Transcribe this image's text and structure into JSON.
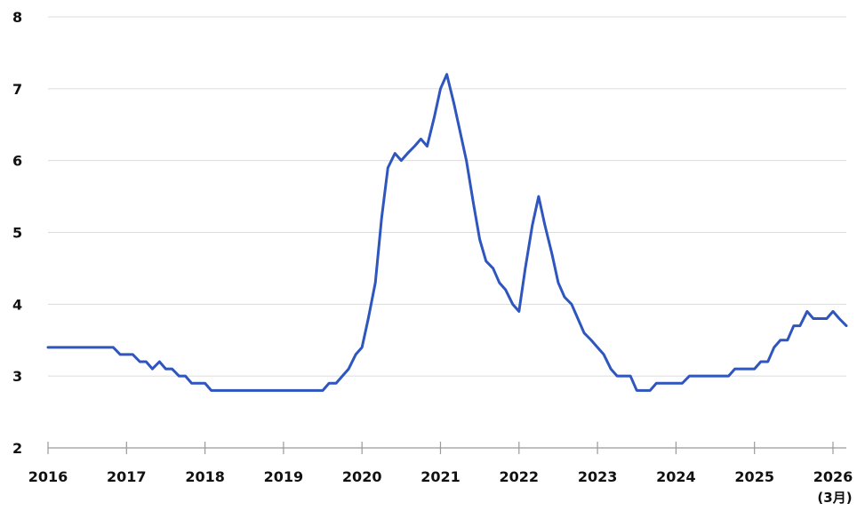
{
  "chart_data": {
    "type": "line",
    "title": "",
    "xlabel": "",
    "ylabel": "",
    "xlim": [
      2016,
      2026.17
    ],
    "ylim": [
      2,
      8
    ],
    "yticks": [
      2,
      3,
      4,
      5,
      6,
      7,
      8
    ],
    "xtick_labels": [
      "2016",
      "2017",
      "2018",
      "2019",
      "2020",
      "2021",
      "2022",
      "2023",
      "2024",
      "2025",
      "2026"
    ],
    "x_note": "(3月)",
    "grid": "horizontal",
    "line_color": "#2E56BE",
    "series": [
      {
        "name": "",
        "x": [
          2016.0,
          2016.83,
          2016.92,
          2017.08,
          2017.17,
          2017.25,
          2017.33,
          2017.42,
          2017.5,
          2017.58,
          2017.67,
          2017.75,
          2017.83,
          2017.92,
          2018.0,
          2018.08,
          2018.17,
          2019.5,
          2019.58,
          2019.67,
          2019.75,
          2019.83,
          2019.92,
          2020.0,
          2020.08,
          2020.17,
          2020.25,
          2020.33,
          2020.42,
          2020.5,
          2020.58,
          2020.67,
          2020.75,
          2020.83,
          2020.92,
          2021.0,
          2021.08,
          2021.17,
          2021.25,
          2021.33,
          2021.42,
          2021.5,
          2021.58,
          2021.67,
          2021.75,
          2021.83,
          2021.92,
          2022.0,
          2022.08,
          2022.17,
          2022.25,
          2022.33,
          2022.42,
          2022.5,
          2022.58,
          2022.67,
          2022.75,
          2022.83,
          2022.92,
          2023.0,
          2023.08,
          2023.17,
          2023.25,
          2023.33,
          2023.42,
          2023.5,
          2023.58,
          2023.67,
          2023.75,
          2023.83,
          2024.08,
          2024.17,
          2024.67,
          2024.75,
          2024.83,
          2025.0,
          2025.08,
          2025.17,
          2025.25,
          2025.33,
          2025.42,
          2025.5,
          2025.58,
          2025.67,
          2025.75,
          2025.83,
          2025.92,
          2026.0,
          2026.08,
          2026.17
        ],
        "values": [
          3.4,
          3.4,
          3.3,
          3.3,
          3.2,
          3.2,
          3.1,
          3.2,
          3.1,
          3.1,
          3.0,
          3.0,
          2.9,
          2.9,
          2.9,
          2.8,
          2.8,
          2.8,
          2.9,
          2.9,
          3.0,
          3.1,
          3.3,
          3.4,
          3.8,
          4.3,
          5.2,
          5.9,
          6.1,
          6.0,
          6.1,
          6.2,
          6.3,
          6.2,
          6.6,
          7.0,
          7.2,
          6.8,
          6.4,
          6.0,
          5.4,
          4.9,
          4.6,
          4.5,
          4.3,
          4.2,
          4.0,
          3.9,
          4.5,
          5.1,
          5.5,
          5.1,
          4.7,
          4.3,
          4.1,
          4.0,
          3.8,
          3.6,
          3.5,
          3.4,
          3.3,
          3.1,
          3.0,
          3.0,
          3.0,
          2.8,
          2.8,
          2.8,
          2.9,
          2.9,
          2.9,
          3.0,
          3.0,
          3.1,
          3.1,
          3.1,
          3.2,
          3.2,
          3.4,
          3.5,
          3.5,
          3.7,
          3.7,
          3.9,
          3.8,
          3.8,
          3.8,
          3.9,
          3.8,
          3.7
        ]
      }
    ]
  }
}
